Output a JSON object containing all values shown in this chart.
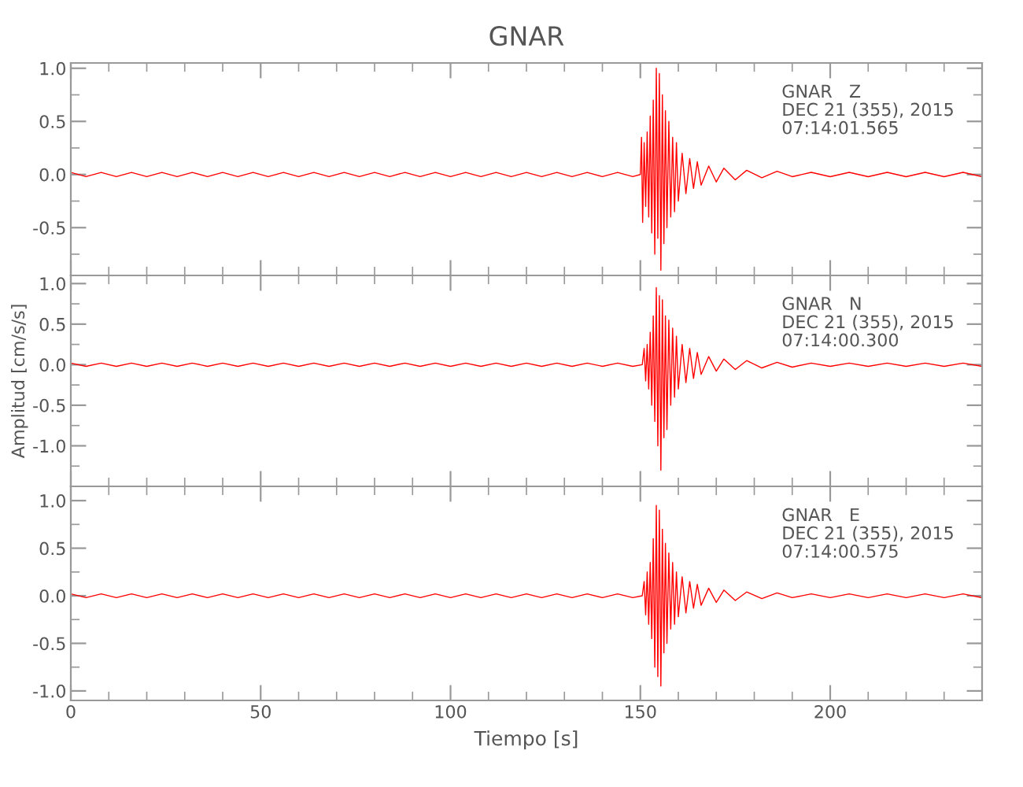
{
  "chart_data": [
    {
      "type": "line",
      "title": "GNAR",
      "annotations": [
        "GNAR   Z\nDEC 21 (355), 2015\n07:14:01.565"
      ],
      "tick_labels": "y",
      "grid": false,
      "legend": false,
      "marker": "none",
      "line_style": "solid",
      "xlim": [
        0,
        240
      ],
      "xticks": [
        0,
        50,
        100,
        150,
        200,
        {
          "value": 10,
          "label": null
        },
        {
          "value": 20,
          "label": null
        },
        {
          "value": 30,
          "label": null
        },
        {
          "value": 40,
          "label": null
        },
        {
          "value": 60,
          "label": null
        },
        {
          "value": 70,
          "label": null
        },
        {
          "value": 80,
          "label": null
        },
        {
          "value": 90,
          "label": null
        },
        {
          "value": 110,
          "label": null
        },
        {
          "value": 120,
          "label": null
        },
        {
          "value": 130,
          "label": null
        },
        {
          "value": 140,
          "label": null
        },
        {
          "value": 160,
          "label": null
        },
        {
          "value": 170,
          "label": null
        },
        {
          "value": 180,
          "label": null
        },
        {
          "value": 190,
          "label": null
        },
        {
          "value": 210,
          "label": null
        },
        {
          "value": 220,
          "label": null
        },
        {
          "value": 230,
          "label": null
        }
      ],
      "ylim": [
        -0.95,
        1.05
      ],
      "yticks": [
        {
          "value": 1.0,
          "label": "1.0"
        },
        {
          "value": 0.5,
          "label": "0.5"
        },
        {
          "value": 0.0,
          "label": "0.0"
        },
        {
          "value": -0.5,
          "label": "-0.5"
        },
        {
          "value": 0.75,
          "label": null
        },
        {
          "value": 0.25,
          "label": null
        },
        {
          "value": -0.25,
          "label": null
        },
        {
          "value": -0.75,
          "label": null
        }
      ],
      "series": [
        {
          "color": "#ff0000",
          "x": [
            0,
            4,
            8,
            12,
            16,
            20,
            24,
            28,
            32,
            36,
            40,
            44,
            48,
            52,
            56,
            60,
            64,
            68,
            72,
            76,
            80,
            84,
            88,
            92,
            96,
            100,
            104,
            108,
            112,
            116,
            120,
            124,
            128,
            132,
            136,
            140,
            144,
            148,
            150,
            150.3,
            150.6,
            151,
            151.4,
            151.8,
            152.2,
            152.6,
            153,
            153.4,
            153.8,
            154.2,
            154.6,
            155,
            155.4,
            155.8,
            156.2,
            156.6,
            157,
            157.5,
            158,
            158.5,
            159,
            159.5,
            160,
            161,
            162,
            163,
            164,
            165,
            166,
            168,
            170,
            172,
            175,
            178,
            182,
            186,
            190,
            195,
            200,
            205,
            210,
            215,
            220,
            225,
            230,
            235,
            240
          ],
          "values": [
            0.02,
            -0.02,
            0.02,
            -0.02,
            0.02,
            -0.02,
            0.02,
            -0.02,
            0.02,
            -0.02,
            0.02,
            -0.02,
            0.02,
            -0.02,
            0.02,
            -0.02,
            0.02,
            -0.02,
            0.02,
            -0.02,
            0.02,
            -0.02,
            0.02,
            -0.02,
            0.02,
            -0.02,
            0.02,
            -0.02,
            0.02,
            -0.02,
            0.02,
            -0.02,
            0.02,
            -0.02,
            0.02,
            -0.02,
            0.02,
            -0.02,
            0.0,
            0.35,
            -0.45,
            0.3,
            -0.3,
            0.4,
            -0.4,
            0.55,
            -0.55,
            0.7,
            -0.75,
            1.0,
            -0.6,
            0.95,
            -0.9,
            0.75,
            -0.65,
            0.6,
            -0.5,
            0.5,
            -0.4,
            0.35,
            -0.35,
            0.3,
            -0.25,
            0.2,
            -0.18,
            0.15,
            -0.13,
            0.12,
            -0.1,
            0.08,
            -0.07,
            0.06,
            -0.05,
            0.04,
            -0.03,
            0.03,
            -0.02,
            0.02,
            -0.02,
            0.02,
            -0.02,
            0.02,
            -0.02,
            0.02,
            -0.02,
            0.02,
            -0.02
          ]
        }
      ]
    },
    {
      "type": "line",
      "ylabel": "Amplitud [cm/s/s]",
      "annotations": [
        "GNAR   N\nDEC 21 (355), 2015\n07:14:00.300"
      ],
      "tick_labels": "y",
      "grid": false,
      "legend": false,
      "marker": "none",
      "line_style": "solid",
      "xlim": [
        0,
        240
      ],
      "xticks": [
        0,
        50,
        100,
        150,
        200,
        {
          "value": 10,
          "label": null
        },
        {
          "value": 20,
          "label": null
        },
        {
          "value": 30,
          "label": null
        },
        {
          "value": 40,
          "label": null
        },
        {
          "value": 60,
          "label": null
        },
        {
          "value": 70,
          "label": null
        },
        {
          "value": 80,
          "label": null
        },
        {
          "value": 90,
          "label": null
        },
        {
          "value": 110,
          "label": null
        },
        {
          "value": 120,
          "label": null
        },
        {
          "value": 130,
          "label": null
        },
        {
          "value": 140,
          "label": null
        },
        {
          "value": 160,
          "label": null
        },
        {
          "value": 170,
          "label": null
        },
        {
          "value": 180,
          "label": null
        },
        {
          "value": 190,
          "label": null
        },
        {
          "value": 210,
          "label": null
        },
        {
          "value": 220,
          "label": null
        },
        {
          "value": 230,
          "label": null
        }
      ],
      "ylim": [
        -1.5,
        1.1
      ],
      "yticks": [
        {
          "value": 1.0,
          "label": "1.0"
        },
        {
          "value": 0.5,
          "label": "0.5"
        },
        {
          "value": 0.0,
          "label": "0.0"
        },
        {
          "value": -0.5,
          "label": "-0.5"
        },
        {
          "value": -1.0,
          "label": "-1.0"
        },
        {
          "value": 0.75,
          "label": null
        },
        {
          "value": 0.25,
          "label": null
        },
        {
          "value": -0.25,
          "label": null
        },
        {
          "value": -0.75,
          "label": null
        },
        {
          "value": -1.25,
          "label": null
        }
      ],
      "series": [
        {
          "color": "#ff0000",
          "x": [
            0,
            4,
            8,
            12,
            16,
            20,
            24,
            28,
            32,
            36,
            40,
            44,
            48,
            52,
            56,
            60,
            64,
            68,
            72,
            76,
            80,
            84,
            88,
            92,
            96,
            100,
            104,
            108,
            112,
            116,
            120,
            124,
            128,
            132,
            136,
            140,
            144,
            148,
            150.5,
            151,
            151.4,
            151.8,
            152.2,
            152.6,
            153,
            153.4,
            153.8,
            154.2,
            154.6,
            155,
            155.4,
            155.8,
            156.2,
            156.6,
            157,
            157.5,
            158,
            158.5,
            159,
            159.5,
            160,
            161,
            162,
            163,
            164,
            165,
            166,
            168,
            170,
            172,
            175,
            178,
            182,
            186,
            190,
            195,
            200,
            205,
            210,
            215,
            220,
            225,
            230,
            235,
            240
          ],
          "values": [
            0.02,
            -0.02,
            0.02,
            -0.02,
            0.02,
            -0.02,
            0.02,
            -0.02,
            0.02,
            -0.02,
            0.02,
            -0.02,
            0.02,
            -0.02,
            0.02,
            -0.02,
            0.02,
            -0.02,
            0.02,
            -0.02,
            0.02,
            -0.02,
            0.02,
            -0.02,
            0.02,
            -0.02,
            0.02,
            -0.02,
            0.02,
            -0.02,
            0.02,
            -0.02,
            0.02,
            -0.02,
            0.02,
            -0.02,
            0.02,
            -0.02,
            0.0,
            0.2,
            -0.2,
            0.25,
            -0.3,
            0.4,
            -0.5,
            0.6,
            -0.7,
            0.95,
            -1.0,
            0.85,
            -1.3,
            0.8,
            -0.9,
            0.6,
            -0.8,
            0.55,
            -0.5,
            0.45,
            -0.4,
            0.35,
            -0.3,
            0.25,
            -0.22,
            0.2,
            -0.17,
            0.15,
            -0.12,
            0.1,
            -0.08,
            0.07,
            -0.06,
            0.05,
            -0.04,
            0.03,
            -0.03,
            0.02,
            -0.02,
            0.02,
            -0.02,
            0.02,
            -0.02,
            0.02,
            -0.02,
            0.02,
            -0.02
          ]
        }
      ]
    },
    {
      "type": "line",
      "xlabel": "Tiempo [s]",
      "annotations": [
        "GNAR   E\nDEC 21 (355), 2015\n07:14:00.575"
      ],
      "grid": false,
      "legend": false,
      "marker": "none",
      "line_style": "solid",
      "xlim": [
        0,
        240
      ],
      "xticks": [
        0,
        50,
        100,
        150,
        200,
        {
          "value": 10,
          "label": null
        },
        {
          "value": 20,
          "label": null
        },
        {
          "value": 30,
          "label": null
        },
        {
          "value": 40,
          "label": null
        },
        {
          "value": 60,
          "label": null
        },
        {
          "value": 70,
          "label": null
        },
        {
          "value": 80,
          "label": null
        },
        {
          "value": 90,
          "label": null
        },
        {
          "value": 110,
          "label": null
        },
        {
          "value": 120,
          "label": null
        },
        {
          "value": 130,
          "label": null
        },
        {
          "value": 140,
          "label": null
        },
        {
          "value": 160,
          "label": null
        },
        {
          "value": 170,
          "label": null
        },
        {
          "value": 180,
          "label": null
        },
        {
          "value": 190,
          "label": null
        },
        {
          "value": 210,
          "label": null
        },
        {
          "value": 220,
          "label": null
        },
        {
          "value": 230,
          "label": null
        }
      ],
      "ylim": [
        -1.1,
        1.15
      ],
      "yticks": [
        {
          "value": 1.0,
          "label": "1.0"
        },
        {
          "value": 0.5,
          "label": "0.5"
        },
        {
          "value": 0.0,
          "label": "0.0"
        },
        {
          "value": -0.5,
          "label": "-0.5"
        },
        {
          "value": -1.0,
          "label": "-1.0"
        },
        {
          "value": 0.75,
          "label": null
        },
        {
          "value": 0.25,
          "label": null
        },
        {
          "value": -0.25,
          "label": null
        },
        {
          "value": -0.75,
          "label": null
        }
      ],
      "series": [
        {
          "color": "#ff0000",
          "x": [
            0,
            4,
            8,
            12,
            16,
            20,
            24,
            28,
            32,
            36,
            40,
            44,
            48,
            52,
            56,
            60,
            64,
            68,
            72,
            76,
            80,
            84,
            88,
            92,
            96,
            100,
            104,
            108,
            112,
            116,
            120,
            124,
            128,
            132,
            136,
            140,
            144,
            148,
            150.5,
            151,
            151.4,
            151.8,
            152.2,
            152.6,
            153,
            153.4,
            153.8,
            154.2,
            154.6,
            155,
            155.4,
            155.8,
            156.2,
            156.6,
            157,
            157.5,
            158,
            158.5,
            159,
            159.5,
            160,
            161,
            162,
            163,
            164,
            165,
            166,
            168,
            170,
            172,
            175,
            178,
            182,
            186,
            190,
            195,
            200,
            205,
            210,
            215,
            220,
            225,
            230,
            235,
            240
          ],
          "values": [
            0.02,
            -0.02,
            0.02,
            -0.02,
            0.02,
            -0.02,
            0.02,
            -0.02,
            0.02,
            -0.02,
            0.02,
            -0.02,
            0.02,
            -0.02,
            0.02,
            -0.02,
            0.02,
            -0.02,
            0.02,
            -0.02,
            0.02,
            -0.02,
            0.02,
            -0.02,
            0.02,
            -0.02,
            0.02,
            -0.02,
            0.02,
            -0.02,
            0.02,
            -0.02,
            0.02,
            -0.02,
            0.02,
            -0.02,
            0.02,
            -0.02,
            0.0,
            0.15,
            -0.2,
            0.25,
            -0.3,
            0.35,
            -0.45,
            0.6,
            -0.75,
            0.95,
            -0.85,
            0.9,
            -0.95,
            0.7,
            -0.6,
            0.55,
            -0.5,
            0.45,
            -0.35,
            0.35,
            -0.3,
            0.25,
            -0.22,
            0.2,
            -0.18,
            0.15,
            -0.13,
            0.12,
            -0.1,
            0.08,
            -0.07,
            0.06,
            -0.05,
            0.04,
            -0.03,
            0.03,
            -0.02,
            0.02,
            -0.02,
            0.02,
            -0.02,
            0.02,
            -0.02,
            0.02,
            -0.02,
            0.02,
            -0.02
          ]
        }
      ]
    }
  ]
}
